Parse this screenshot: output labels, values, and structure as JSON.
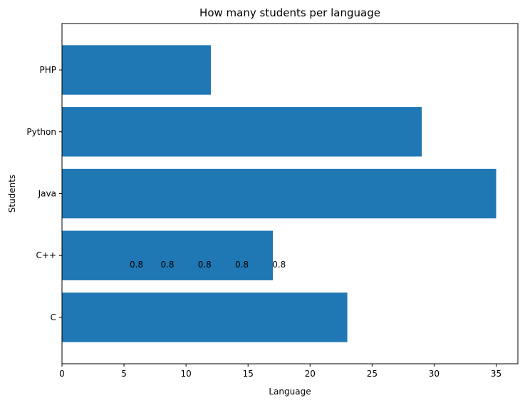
{
  "chart_data": {
    "type": "bar",
    "orientation": "horizontal",
    "title": "How many students per language",
    "xlabel": "Language",
    "ylabel": "Students",
    "categories": [
      "C",
      "C++",
      "Java",
      "Python",
      "PHP"
    ],
    "values": [
      23,
      17,
      35,
      29,
      12
    ],
    "xlim": [
      0,
      36.75
    ],
    "xticks": [
      0,
      5,
      10,
      15,
      20,
      25,
      30,
      35
    ],
    "bar_color": "#1f77b4",
    "grid": false,
    "annotations": [
      {
        "text": "0.8",
        "x": 6,
        "y": 0.85
      },
      {
        "text": "0.8",
        "x": 8.5,
        "y": 0.85
      },
      {
        "text": "0.8",
        "x": 11.5,
        "y": 0.85
      },
      {
        "text": "0.8",
        "x": 14.5,
        "y": 0.85
      },
      {
        "text": "0.8",
        "x": 17.5,
        "y": 0.85
      }
    ]
  }
}
